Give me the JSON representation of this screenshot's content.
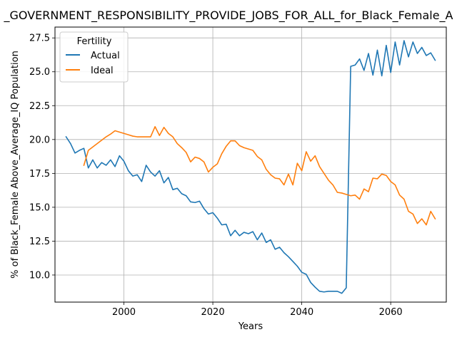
{
  "chart_data": {
    "type": "line",
    "title": "_GOVERNMENT_RESPONSIBILITY_PROVIDE_JOBS_FOR_ALL_for_Black_Female_A",
    "xlabel": "Years",
    "ylabel": "% of Black_Female Above_Average_IQ Population",
    "xlim": [
      1984.5,
      2072.5
    ],
    "ylim": [
      8.0,
      28.3
    ],
    "xticks": [
      2000,
      2020,
      2040,
      2060
    ],
    "yticks": [
      10.0,
      12.5,
      15.0,
      17.5,
      20.0,
      22.5,
      25.0,
      27.5
    ],
    "ytick_labels": [
      "10.0",
      "12.5",
      "15.0",
      "17.5",
      "20.0",
      "22.5",
      "25.0",
      "27.5"
    ],
    "grid": true,
    "legend": {
      "title": "Fertility",
      "position": "top-left"
    },
    "series": [
      {
        "name": "Actual",
        "color": "#1f77b4",
        "x": [
          1987,
          1988,
          1989,
          1990,
          1991,
          1992,
          1993,
          1994,
          1995,
          1996,
          1997,
          1998,
          1999,
          2000,
          2001,
          2002,
          2003,
          2004,
          2005,
          2006,
          2007,
          2008,
          2009,
          2010,
          2011,
          2012,
          2013,
          2014,
          2015,
          2016,
          2017,
          2018,
          2019,
          2020,
          2021,
          2022,
          2023,
          2024,
          2025,
          2026,
          2027,
          2028,
          2029,
          2030,
          2031,
          2032,
          2033,
          2034,
          2035,
          2036,
          2037,
          2038,
          2039,
          2040,
          2041,
          2042,
          2043,
          2044,
          2045,
          2046,
          2047,
          2048,
          2049,
          2050,
          2051,
          2052,
          2053,
          2054,
          2055,
          2056,
          2057,
          2058,
          2059,
          2060,
          2061,
          2062,
          2063,
          2064,
          2065,
          2066,
          2067,
          2068,
          2069,
          2070
        ],
        "values": [
          20.2,
          19.7,
          19.0,
          19.2,
          19.35,
          17.9,
          18.5,
          17.9,
          18.3,
          18.1,
          18.5,
          18.0,
          18.8,
          18.4,
          17.7,
          17.3,
          17.4,
          16.9,
          18.1,
          17.6,
          17.3,
          17.7,
          16.8,
          17.2,
          16.3,
          16.4,
          16.0,
          15.85,
          15.4,
          15.35,
          15.45,
          14.9,
          14.5,
          14.6,
          14.2,
          13.7,
          13.75,
          12.9,
          13.3,
          12.9,
          13.15,
          13.05,
          13.2,
          12.6,
          13.1,
          12.4,
          12.6,
          11.9,
          12.05,
          11.65,
          11.35,
          11.0,
          10.65,
          10.2,
          10.05,
          9.45,
          9.1,
          8.8,
          8.75,
          8.8,
          8.8,
          8.8,
          8.65,
          9.05,
          25.4,
          25.5,
          25.95,
          25.1,
          26.35,
          24.75,
          26.6,
          24.7,
          26.95,
          24.95,
          27.2,
          25.5,
          27.3,
          26.1,
          27.2,
          26.35,
          26.8,
          26.2,
          26.4,
          25.85
        ]
      },
      {
        "name": "Ideal",
        "color": "#ff7f0e",
        "x": [
          1991,
          1992,
          1993,
          1994,
          1995,
          1996,
          1997,
          1998,
          1999,
          2000,
          2001,
          2002,
          2003,
          2004,
          2005,
          2006,
          2007,
          2008,
          2009,
          2010,
          2011,
          2012,
          2013,
          2014,
          2015,
          2016,
          2017,
          2018,
          2019,
          2020,
          2021,
          2022,
          2023,
          2024,
          2025,
          2026,
          2027,
          2028,
          2029,
          2030,
          2031,
          2032,
          2033,
          2034,
          2035,
          2036,
          2037,
          2038,
          2039,
          2040,
          2041,
          2042,
          2043,
          2044,
          2045,
          2046,
          2047,
          2048,
          2049,
          2050,
          2051,
          2052,
          2053,
          2054,
          2055,
          2056,
          2057,
          2058,
          2059,
          2060,
          2061,
          2062,
          2063,
          2064,
          2065,
          2066,
          2067,
          2068,
          2069,
          2070
        ],
        "values": [
          18.1,
          19.2,
          19.45,
          19.7,
          19.95,
          20.2,
          20.4,
          20.65,
          20.55,
          20.45,
          20.35,
          20.25,
          20.2,
          20.2,
          20.2,
          20.2,
          20.95,
          20.3,
          20.9,
          20.45,
          20.2,
          19.7,
          19.4,
          19.05,
          18.35,
          18.7,
          18.6,
          18.35,
          17.6,
          17.95,
          18.2,
          18.95,
          19.5,
          19.9,
          19.9,
          19.55,
          19.4,
          19.3,
          19.2,
          18.75,
          18.5,
          17.8,
          17.4,
          17.15,
          17.1,
          16.65,
          17.45,
          16.65,
          18.25,
          17.7,
          19.1,
          18.4,
          18.8,
          18.0,
          17.5,
          17.0,
          16.65,
          16.1,
          16.05,
          15.95,
          15.85,
          15.9,
          15.6,
          16.35,
          16.15,
          17.15,
          17.1,
          17.45,
          17.35,
          16.9,
          16.65,
          15.9,
          15.6,
          14.7,
          14.5,
          13.8,
          14.15,
          13.7,
          14.7,
          14.15
        ]
      }
    ]
  }
}
